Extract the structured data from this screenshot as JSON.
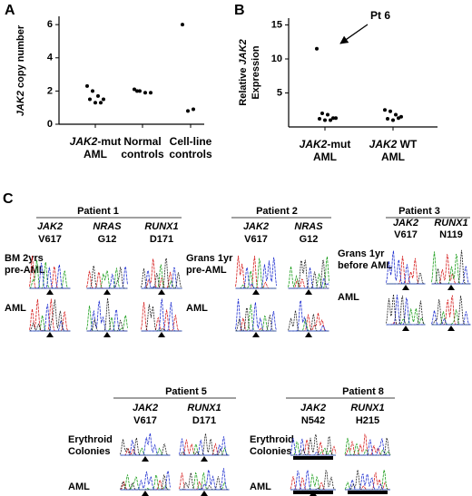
{
  "chart_data": [
    {
      "type": "scatter",
      "panel": "A",
      "ylabel": "JAK2 copy number",
      "categories": [
        [
          "JAK2-mut",
          "AML"
        ],
        [
          "Normal",
          "controls"
        ],
        [
          "Cell-line",
          "controls"
        ]
      ],
      "values": [
        [
          2.3,
          2.0,
          1.7,
          1.5,
          1.5,
          1.3,
          1.3
        ],
        [
          2.1,
          2.0,
          1.9,
          1.9,
          2.0
        ],
        [
          6.0,
          0.8,
          0.9
        ]
      ],
      "color": "#000000",
      "ylim": [
        0,
        6.5
      ],
      "yticks": [
        0,
        2,
        4,
        6
      ]
    },
    {
      "type": "scatter",
      "panel": "B",
      "ylabel": [
        "Relative JAK2",
        "Expression"
      ],
      "annotation": "Pt 6",
      "categories": [
        [
          "JAK2-mut",
          "AML"
        ],
        [
          "JAK2 WT",
          "AML"
        ]
      ],
      "values": [
        [
          11.5,
          2.0,
          1.8,
          1.3,
          1.2,
          1.0,
          1.0,
          1.3
        ],
        [
          2.5,
          2.3,
          1.8,
          1.5,
          1.2,
          1.0,
          1.3
        ]
      ],
      "color": "#000000",
      "ylim": [
        0,
        16
      ],
      "yticks": [
        5,
        10,
        15
      ]
    }
  ],
  "panel_c": {
    "panel": "C",
    "patients": [
      {
        "title": "Patient 1",
        "genes": [
          [
            "JAK2",
            "V617"
          ],
          [
            "NRAS",
            "G12"
          ],
          [
            "RUNX1",
            "D171"
          ]
        ],
        "rows": [
          [
            "BM 2yrs",
            "pre-AML"
          ],
          [
            "AML"
          ]
        ]
      },
      {
        "title": "Patient 2",
        "genes": [
          [
            "JAK2",
            "V617"
          ],
          [
            "NRAS",
            "G12"
          ]
        ],
        "rows": [
          [
            "Grans 1yr",
            "pre-AML"
          ],
          [
            "AML"
          ]
        ]
      },
      {
        "title": "Patient 3",
        "genes": [
          [
            "JAK2",
            "V617"
          ],
          [
            "RUNX1",
            "N119"
          ]
        ],
        "rows": [
          [
            "Grans 1yr",
            "before AML"
          ],
          [
            "AML"
          ]
        ]
      },
      {
        "title": "Patient 5",
        "genes": [
          [
            "JAK2",
            "V617"
          ],
          [
            "RUNX1",
            "D171"
          ]
        ],
        "rows": [
          [
            "Erythroid",
            "Colonies"
          ],
          [
            "AML"
          ]
        ]
      },
      {
        "title": "Patient 8",
        "genes": [
          [
            "JAK2",
            "N542"
          ],
          [
            "RUNX1",
            "H215"
          ]
        ],
        "rows": [
          [
            "Erythroid",
            "Colonies"
          ],
          [
            "AML"
          ]
        ]
      }
    ]
  }
}
